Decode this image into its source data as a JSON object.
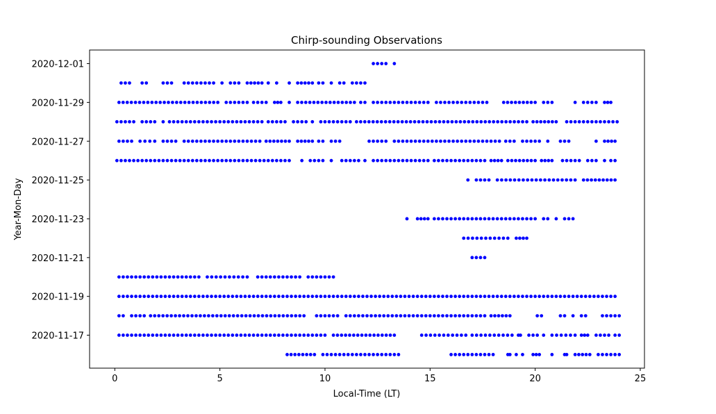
{
  "chart_data": {
    "type": "scatter",
    "title": "Chirp-sounding Observations",
    "xlabel": "Local-Time (LT)",
    "ylabel": "Year-Mon-Day",
    "xlim": [
      -1.2,
      25.2
    ],
    "ylim": [
      -0.7,
      15.7
    ],
    "x_ticks": [
      0,
      5,
      10,
      15,
      20,
      25
    ],
    "y_ticks": [
      "2020-11-17",
      "2020-11-19",
      "2020-11-21",
      "2020-11-23",
      "2020-11-25",
      "2020-11-27",
      "2020-11-29",
      "2020-12-01"
    ],
    "y_categories": [
      "2020-11-16",
      "2020-11-17",
      "2020-11-18",
      "2020-11-19",
      "2020-11-20",
      "2020-11-21",
      "2020-11-22",
      "2020-11-23",
      "2020-11-24",
      "2020-11-25",
      "2020-11-26",
      "2020-11-27",
      "2020-11-28",
      "2020-11-29",
      "2020-11-30",
      "2020-12-01"
    ],
    "grid": false,
    "marker_color": "#0000ff",
    "series": [
      {
        "date": "2020-11-16",
        "ranges": [
          [
            8.2,
            9.5
          ],
          [
            9.9,
            13.5
          ],
          [
            16.0,
            18.0
          ],
          [
            18.7,
            18.8
          ],
          [
            19.1,
            19.4
          ],
          [
            19.9,
            20.2
          ],
          [
            20.8,
            20.8
          ],
          [
            21.4,
            21.5
          ],
          [
            21.9,
            22.6
          ],
          [
            23.0,
            23.6
          ],
          [
            23.8,
            24.0
          ]
        ]
      },
      {
        "date": "2020-11-17",
        "ranges": [
          [
            0.2,
            10.0
          ],
          [
            10.4,
            13.3
          ],
          [
            14.6,
            16.7
          ],
          [
            17.0,
            18.9
          ],
          [
            19.2,
            19.3
          ],
          [
            19.7,
            20.1
          ],
          [
            20.4,
            20.4
          ],
          [
            20.8,
            21.9
          ],
          [
            22.2,
            22.5
          ],
          [
            22.9,
            23.5
          ],
          [
            23.8,
            24.0
          ]
        ]
      },
      {
        "date": "2020-11-18",
        "ranges": [
          [
            0.2,
            0.4
          ],
          [
            0.8,
            1.4
          ],
          [
            1.7,
            9.0
          ],
          [
            9.6,
            10.6
          ],
          [
            11.0,
            17.6
          ],
          [
            17.9,
            18.8
          ],
          [
            20.1,
            20.3
          ],
          [
            21.2,
            21.4
          ],
          [
            21.8,
            21.8
          ],
          [
            22.2,
            22.4
          ],
          [
            23.2,
            24.0
          ]
        ]
      },
      {
        "date": "2020-11-19",
        "ranges": [
          [
            0.2,
            23.8
          ]
        ]
      },
      {
        "date": "2020-11-20",
        "ranges": [
          [
            0.2,
            4.0
          ],
          [
            4.4,
            6.3
          ],
          [
            6.8,
            8.8
          ],
          [
            9.2,
            10.4
          ]
        ]
      },
      {
        "date": "2020-11-21",
        "ranges": [
          [
            17.0,
            17.6
          ]
        ]
      },
      {
        "date": "2020-11-22",
        "ranges": [
          [
            16.6,
            18.7
          ],
          [
            19.1,
            19.6
          ]
        ]
      },
      {
        "date": "2020-11-23",
        "ranges": [
          [
            13.9,
            13.9
          ],
          [
            14.4,
            14.9
          ],
          [
            15.2,
            20.0
          ],
          [
            20.4,
            20.6
          ],
          [
            21.0,
            21.0
          ],
          [
            21.4,
            21.8
          ]
        ]
      },
      {
        "date": "2020-11-25",
        "ranges": [
          [
            16.8,
            16.8
          ],
          [
            17.2,
            17.8
          ],
          [
            18.2,
            21.9
          ],
          [
            22.3,
            23.8
          ]
        ]
      },
      {
        "date": "2020-11-26",
        "ranges": [
          [
            0.1,
            8.3
          ],
          [
            8.9,
            8.9
          ],
          [
            9.3,
            9.9
          ],
          [
            10.3,
            10.4
          ],
          [
            10.8,
            11.6
          ],
          [
            11.9,
            11.9
          ],
          [
            12.3,
            14.9
          ],
          [
            15.2,
            17.6
          ],
          [
            17.9,
            18.4
          ],
          [
            18.7,
            20.0
          ],
          [
            20.3,
            20.8
          ],
          [
            21.3,
            22.1
          ],
          [
            22.5,
            22.9
          ],
          [
            23.3,
            23.3
          ],
          [
            23.6,
            23.8
          ]
        ]
      },
      {
        "date": "2020-11-27",
        "ranges": [
          [
            0.2,
            0.8
          ],
          [
            1.2,
            1.9
          ],
          [
            2.3,
            2.9
          ],
          [
            3.3,
            6.9
          ],
          [
            7.2,
            8.3
          ],
          [
            8.7,
            9.4
          ],
          [
            9.7,
            9.9
          ],
          [
            10.3,
            10.7
          ],
          [
            12.1,
            12.9
          ],
          [
            13.3,
            18.3
          ],
          [
            18.6,
            19.0
          ],
          [
            19.4,
            20.2
          ],
          [
            20.6,
            20.7
          ],
          [
            21.2,
            21.6
          ],
          [
            22.9,
            22.9
          ],
          [
            23.3,
            23.8
          ]
        ]
      },
      {
        "date": "2020-11-28",
        "ranges": [
          [
            0.1,
            0.9
          ],
          [
            1.3,
            1.9
          ],
          [
            2.3,
            2.3
          ],
          [
            2.6,
            7.0
          ],
          [
            7.3,
            8.1
          ],
          [
            8.5,
            9.1
          ],
          [
            9.4,
            9.4
          ],
          [
            9.8,
            11.2
          ],
          [
            11.5,
            19.6
          ],
          [
            19.9,
            21.0
          ],
          [
            21.5,
            23.9
          ]
        ]
      },
      {
        "date": "2020-11-29",
        "ranges": [
          [
            0.2,
            4.9
          ],
          [
            5.3,
            6.3
          ],
          [
            6.6,
            7.2
          ],
          [
            7.6,
            7.9
          ],
          [
            8.3,
            8.3
          ],
          [
            8.7,
            11.4
          ],
          [
            11.7,
            11.9
          ],
          [
            12.3,
            14.9
          ],
          [
            15.3,
            17.7
          ],
          [
            18.5,
            20.0
          ],
          [
            20.4,
            20.8
          ],
          [
            21.9,
            21.9
          ],
          [
            22.3,
            22.9
          ],
          [
            23.3,
            23.6
          ]
        ]
      },
      {
        "date": "2020-11-30",
        "ranges": [
          [
            0.3,
            0.7
          ],
          [
            1.3,
            1.5
          ],
          [
            2.3,
            2.7
          ],
          [
            3.3,
            4.7
          ],
          [
            5.1,
            5.1
          ],
          [
            5.5,
            5.9
          ],
          [
            6.3,
            7.0
          ],
          [
            7.3,
            7.3
          ],
          [
            7.7,
            7.7
          ],
          [
            8.3,
            8.3
          ],
          [
            8.7,
            9.4
          ],
          [
            9.7,
            9.9
          ],
          [
            10.3,
            10.3
          ],
          [
            10.7,
            10.9
          ],
          [
            11.3,
            11.9
          ]
        ]
      },
      {
        "date": "2020-12-01",
        "ranges": [
          [
            12.3,
            12.9
          ],
          [
            13.3,
            13.3
          ]
        ]
      }
    ]
  }
}
